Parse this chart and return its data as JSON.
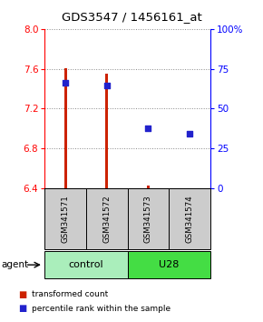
{
  "title": "GDS3547 / 1456161_at",
  "samples": [
    "GSM341571",
    "GSM341572",
    "GSM341573",
    "GSM341574"
  ],
  "red_values": [
    7.607,
    7.553,
    6.425,
    6.405
  ],
  "blue_percentiles": [
    66.0,
    64.5,
    38.0,
    34.5
  ],
  "red_base": 6.4,
  "ylim_left": [
    6.4,
    8.0
  ],
  "ylim_right": [
    0,
    100
  ],
  "left_ticks": [
    6.4,
    6.8,
    7.2,
    7.6,
    8.0
  ],
  "right_ticks": [
    0,
    25,
    50,
    75,
    100
  ],
  "right_tick_labels": [
    "0",
    "25",
    "50",
    "75",
    "100%"
  ],
  "groups": [
    {
      "label": "control",
      "samples_idx": [
        0,
        1
      ],
      "color": "#AAEEBB"
    },
    {
      "label": "U28",
      "samples_idx": [
        2,
        3
      ],
      "color": "#44DD44"
    }
  ],
  "bar_color": "#CC2200",
  "dot_color": "#2222CC",
  "bar_width": 0.07,
  "dot_size": 25,
  "bg_label": "#CCCCCC",
  "fig_width": 2.9,
  "fig_height": 3.54,
  "dpi": 100
}
